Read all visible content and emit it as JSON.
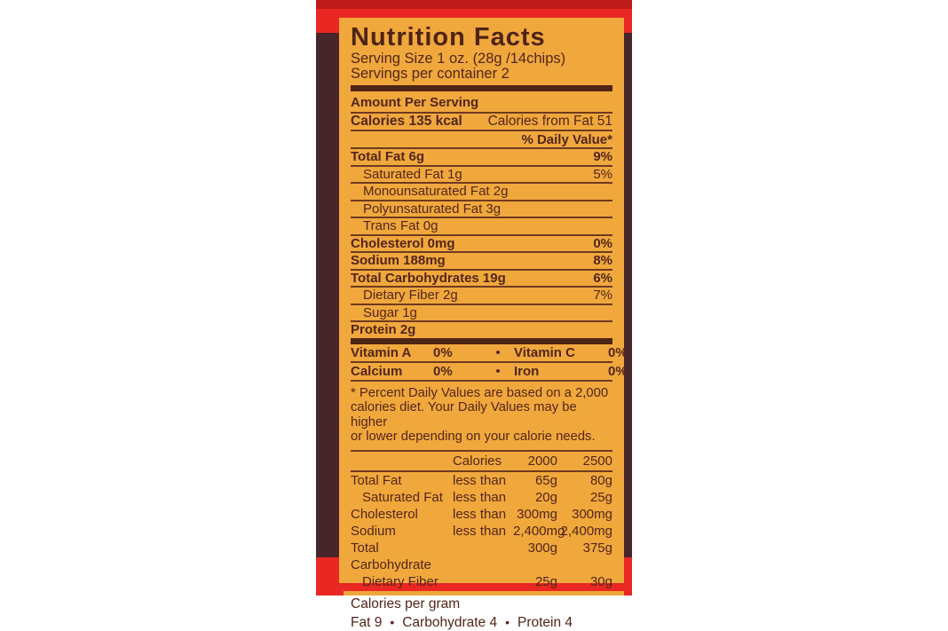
{
  "colors": {
    "package_red": "#E92723",
    "package_red_dark": "#BE1B1A",
    "package_brown": "#46252B",
    "panel_orange": "#F0A83D",
    "ink_brown": "#53261A"
  },
  "panel": {
    "title": "Nutrition Facts",
    "serving_size": "Serving Size 1 oz. (28g /14chips)",
    "servings_per_container": "Servings per container 2",
    "amount_per_serving": "Amount Per Serving",
    "calories": "Calories 135 kcal",
    "calories_from_fat": "Calories from Fat 51",
    "daily_value_header": "% Daily Value*",
    "nutrients": [
      {
        "label": "Total Fat 6g",
        "value": "9%"
      },
      {
        "label": "Saturated Fat 1g",
        "value": "5%"
      },
      {
        "label": "Monounsaturated Fat 2g",
        "value": ""
      },
      {
        "label": "Polyunsaturated Fat 3g",
        "value": ""
      },
      {
        "label": "Trans Fat 0g",
        "value": ""
      },
      {
        "label": "Cholesterol 0mg",
        "value": "0%"
      },
      {
        "label": "Sodium 188mg",
        "value": "8%"
      },
      {
        "label": "Total Carbohydrates 19g",
        "value": "6%"
      },
      {
        "label": "Dietary Fiber 2g",
        "value": "7%"
      },
      {
        "label": "Sugar 1g",
        "value": ""
      },
      {
        "label": "Protein 2g",
        "value": ""
      }
    ],
    "bullet": "•",
    "vitamins": [
      {
        "name1": "Vitamin A",
        "value1": "0%",
        "name2": "Vitamin C",
        "value2": "0%"
      },
      {
        "name1": "Calcium",
        "value1": "0%",
        "name2": "Iron",
        "value2": "0%"
      }
    ],
    "footnote_lines": [
      "* Percent Daily Values are based on a 2,000",
      "calories diet. Your Daily Values may be higher",
      "or lower depending on your calorie needs."
    ],
    "dv_table": {
      "header": {
        "calories": "Calories",
        "c2000": "2000",
        "c2500": "2500"
      },
      "rows": [
        {
          "label": "Total Fat",
          "qualifier": "less than",
          "v2000": "65g",
          "v2500": "80g"
        },
        {
          "label": "Saturated Fat",
          "qualifier": "less than",
          "v2000": "20g",
          "v2500": "25g"
        },
        {
          "label": "Cholesterol",
          "qualifier": "less than",
          "v2000": "300mg",
          "v2500": "300mg"
        },
        {
          "label": "Sodium",
          "qualifier": "less than",
          "v2000": "2,400mg",
          "v2500": "2,400mg"
        },
        {
          "label": "Total Carbohydrate",
          "qualifier": "",
          "v2000": "300g",
          "v2500": "375g"
        },
        {
          "label": "Dietary Fiber",
          "qualifier": "",
          "v2000": "25g",
          "v2500": "30g"
        }
      ]
    },
    "calories_per_gram_label": "Calories per gram",
    "calories_per_gram_items": [
      "Fat 9",
      "Carbohydrate 4",
      "Protein 4"
    ]
  }
}
